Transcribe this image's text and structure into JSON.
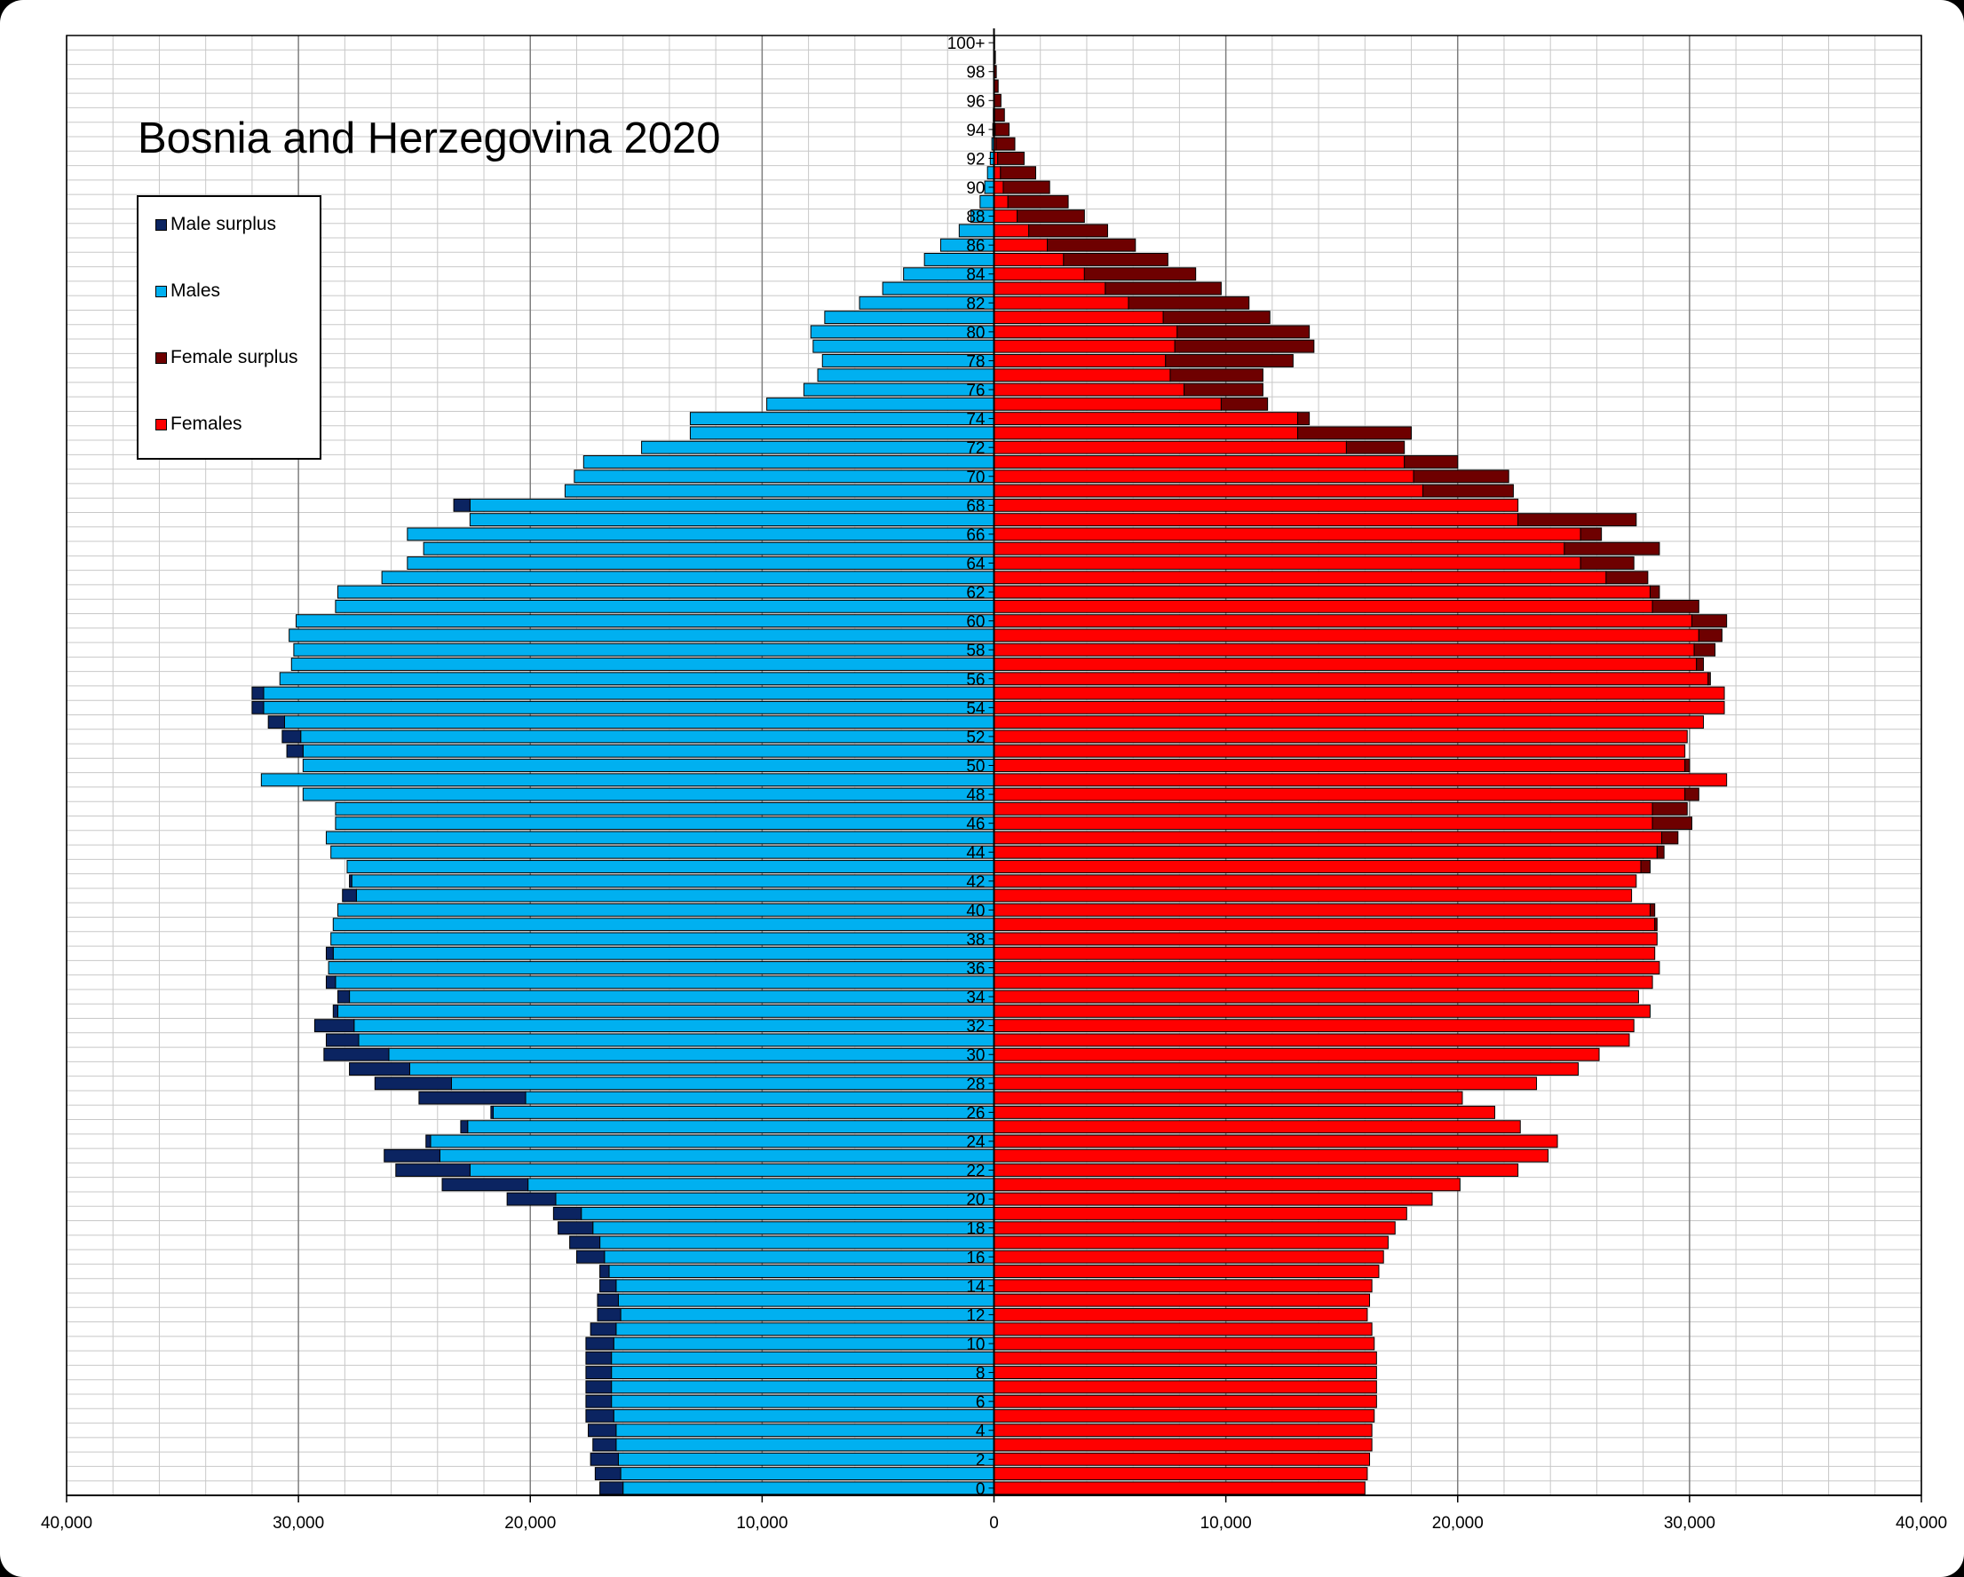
{
  "chart_data": {
    "type": "bar",
    "orientation": "horizontal",
    "title": "Bosnia and Herzegovina 2020",
    "xlim": [
      -40000,
      40000
    ],
    "x_ticks": [
      {
        "value": -40000,
        "label": "40,000"
      },
      {
        "value": -30000,
        "label": "30,000"
      },
      {
        "value": -20000,
        "label": "20,000"
      },
      {
        "value": -10000,
        "label": "10,000"
      },
      {
        "value": 0,
        "label": "0"
      },
      {
        "value": 10000,
        "label": "10,000"
      },
      {
        "value": 20000,
        "label": "20,000"
      },
      {
        "value": 30000,
        "label": "30,000"
      },
      {
        "value": 40000,
        "label": "40,000"
      }
    ],
    "age_labels": [
      "0",
      "2",
      "4",
      "6",
      "8",
      "10",
      "12",
      "14",
      "16",
      "18",
      "20",
      "22",
      "24",
      "26",
      "28",
      "30",
      "32",
      "34",
      "36",
      "38",
      "40",
      "42",
      "44",
      "46",
      "48",
      "50",
      "52",
      "54",
      "56",
      "58",
      "60",
      "62",
      "64",
      "66",
      "68",
      "70",
      "72",
      "74",
      "76",
      "78",
      "80",
      "82",
      "84",
      "86",
      "88",
      "90",
      "92",
      "94",
      "96",
      "98",
      "100+"
    ],
    "legend_position": "top-left",
    "grid": true,
    "colors": {
      "male_surplus": "#0b2461",
      "males": "#00b0f0",
      "female_surplus": "#6e0000",
      "females": "#ff0000"
    },
    "legend": [
      {
        "key": "male_surplus",
        "label": "Male surplus"
      },
      {
        "key": "males",
        "label": "Males"
      },
      {
        "key": "female_surplus",
        "label": "Female surplus"
      },
      {
        "key": "females",
        "label": "Females"
      }
    ],
    "ages": [
      0,
      1,
      2,
      3,
      4,
      5,
      6,
      7,
      8,
      9,
      10,
      11,
      12,
      13,
      14,
      15,
      16,
      17,
      18,
      19,
      20,
      21,
      22,
      23,
      24,
      25,
      26,
      27,
      28,
      29,
      30,
      31,
      32,
      33,
      34,
      35,
      36,
      37,
      38,
      39,
      40,
      41,
      42,
      43,
      44,
      45,
      46,
      47,
      48,
      49,
      50,
      51,
      52,
      53,
      54,
      55,
      56,
      57,
      58,
      59,
      60,
      61,
      62,
      63,
      64,
      65,
      66,
      67,
      68,
      69,
      70,
      71,
      72,
      73,
      74,
      75,
      76,
      77,
      78,
      79,
      80,
      81,
      82,
      83,
      84,
      85,
      86,
      87,
      88,
      89,
      90,
      91,
      92,
      93,
      94,
      95,
      96,
      97,
      98,
      99,
      100
    ],
    "males": [
      17000,
      17200,
      17400,
      17300,
      17500,
      17600,
      17600,
      17600,
      17600,
      17600,
      17600,
      17400,
      17100,
      17100,
      17000,
      17000,
      18000,
      18300,
      18800,
      19000,
      21000,
      23800,
      25800,
      26300,
      24500,
      23000,
      21700,
      24800,
      26700,
      27800,
      28900,
      28800,
      29300,
      28500,
      28300,
      28800,
      28700,
      28800,
      28600,
      28500,
      28300,
      28100,
      27800,
      27900,
      28600,
      28800,
      28400,
      28400,
      29800,
      31600,
      29800,
      30500,
      30700,
      31300,
      32000,
      32000,
      30800,
      30300,
      30200,
      30400,
      30100,
      28400,
      28300,
      26400,
      25300,
      24600,
      25300,
      22600,
      23300,
      18500,
      18100,
      17700,
      15200,
      13100,
      13100,
      9800,
      8200,
      7600,
      7400,
      7800,
      7900,
      7300,
      5800,
      4800,
      3900,
      3000,
      2300,
      1500,
      1000,
      600,
      400,
      280,
      160,
      90,
      50,
      30,
      15,
      8,
      4,
      2,
      1
    ],
    "females": [
      16000,
      16100,
      16200,
      16300,
      16300,
      16400,
      16500,
      16500,
      16500,
      16500,
      16400,
      16300,
      16100,
      16200,
      16300,
      16600,
      16800,
      17000,
      17300,
      17800,
      18900,
      20100,
      22600,
      23900,
      24300,
      22700,
      21600,
      20200,
      23400,
      25200,
      26100,
      27400,
      27600,
      28300,
      27800,
      28400,
      28700,
      28500,
      28600,
      28600,
      28500,
      27500,
      27700,
      28300,
      28900,
      29500,
      30100,
      29900,
      30400,
      31600,
      30000,
      29800,
      29900,
      30600,
      31500,
      31500,
      30900,
      30600,
      31100,
      31400,
      31600,
      30400,
      28700,
      28200,
      27600,
      28700,
      26200,
      27700,
      22600,
      22400,
      22200,
      20000,
      17700,
      18000,
      13600,
      11800,
      11600,
      11600,
      12900,
      13800,
      13600,
      11900,
      11000,
      9800,
      8700,
      7500,
      6100,
      4900,
      3900,
      3200,
      2400,
      1800,
      1300,
      900,
      650,
      450,
      300,
      180,
      100,
      60,
      30
    ],
    "male_base": [
      16000,
      16100,
      16200,
      16300,
      16300,
      16400,
      16500,
      16500,
      16500,
      16500,
      16400,
      16300,
      16100,
      16200,
      16300,
      16600,
      16800,
      17000,
      17300,
      17800,
      18900,
      20100,
      22600,
      23900,
      24300,
      22700,
      21600,
      20200,
      23400,
      25200,
      26100,
      27400,
      27600,
      28300,
      27800,
      28400,
      28700,
      28500,
      28600,
      28600,
      28500,
      27500,
      27700,
      28300,
      28600,
      28800,
      28400,
      28400,
      29800,
      31600,
      29800,
      29800,
      29900,
      30600,
      31500,
      31500,
      30800,
      30300,
      30200,
      30400,
      30100,
      28400,
      28300,
      26400,
      25300,
      24600,
      25300,
      22600,
      23300,
      18500,
      18100,
      17700,
      15200,
      13100,
      13100,
      9800,
      8200,
      7600,
      7400,
      7800,
      7900,
      7300,
      5800,
      4800,
      3900,
      3000,
      2300,
      1500,
      1000,
      600,
      400,
      280,
      160,
      90,
      50,
      30,
      15,
      8,
      4,
      2,
      1
    ],
    "female_base": [
      16000,
      16100,
      16200,
      16300,
      16300,
      16400,
      16500,
      16500,
      16500,
      16500,
      16400,
      16300,
      16100,
      16200,
      16300,
      16600,
      16800,
      17000,
      17300,
      17800,
      18900,
      20100,
      22600,
      23900,
      24300,
      22700,
      21600,
      20200,
      23400,
      25200,
      26100,
      27400,
      27600,
      28300,
      27800,
      28400,
      28700,
      28500,
      28600,
      28600,
      28500,
      27500,
      27700,
      28300,
      28600,
      28800,
      28400,
      28400,
      29800,
      31600,
      29800,
      29800,
      29900,
      30600,
      31500,
      31500,
      30800,
      30300,
      30200,
      30400,
      30100,
      28400,
      28300,
      26400,
      25300,
      24600,
      25300,
      22600,
      23300,
      18500,
      18100,
      17700,
      15200,
      13100,
      13100,
      9800,
      8200,
      7600,
      7400,
      7800,
      7900,
      7300,
      5800,
      4800,
      3900,
      3000,
      2300,
      1500,
      1000,
      600,
      400,
      280,
      160,
      90,
      50,
      30,
      15,
      8,
      4,
      2,
      1
    ]
  }
}
